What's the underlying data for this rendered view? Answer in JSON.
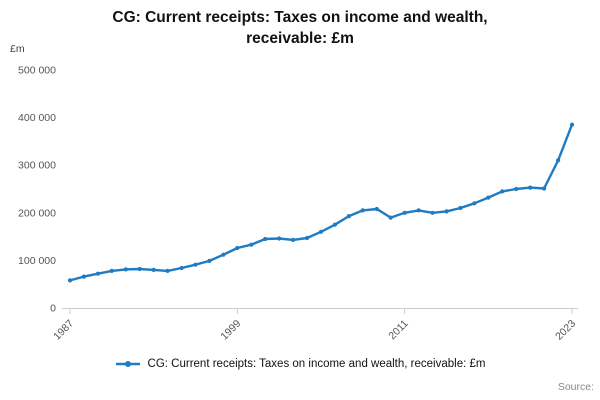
{
  "title": "CG: Current receipts: Taxes on income and wealth, receivable: £m",
  "source_label": "Source:",
  "accent_color": "#1f7bc2",
  "legend": {
    "label": "CG: Current receipts: Taxes on income and wealth, receivable: £m"
  },
  "chart_data": {
    "type": "line",
    "title": "CG: Current receipts: Taxes on income and wealth, receivable: £m",
    "xlabel": "",
    "ylabel": "£m",
    "ylim": [
      0,
      500000
    ],
    "y_ticks": [
      0,
      100000,
      200000,
      300000,
      400000,
      500000
    ],
    "x_tick_labels": [
      1987,
      1999,
      2011,
      2023
    ],
    "grid": false,
    "legend_position": "bottom",
    "x": [
      1987,
      1988,
      1989,
      1990,
      1991,
      1992,
      1993,
      1994,
      1995,
      1996,
      1997,
      1998,
      1999,
      2000,
      2001,
      2002,
      2003,
      2004,
      2005,
      2006,
      2007,
      2008,
      2009,
      2010,
      2011,
      2012,
      2013,
      2014,
      2015,
      2016,
      2017,
      2018,
      2019,
      2020,
      2021,
      2022,
      2023
    ],
    "series": [
      {
        "name": "CG: Current receipts: Taxes on income and wealth, receivable: £m",
        "color": "#1f7bc2",
        "marker": "circle",
        "values": [
          58000,
          66000,
          72000,
          78000,
          81000,
          82000,
          80000,
          78000,
          84000,
          91000,
          99000,
          112000,
          126000,
          133000,
          145000,
          146000,
          143000,
          147000,
          160000,
          175000,
          193000,
          205000,
          208000,
          190000,
          200000,
          205000,
          200000,
          203000,
          210000,
          220000,
          232000,
          245000,
          250000,
          253000,
          251000,
          310000,
          385000
        ]
      }
    ]
  }
}
